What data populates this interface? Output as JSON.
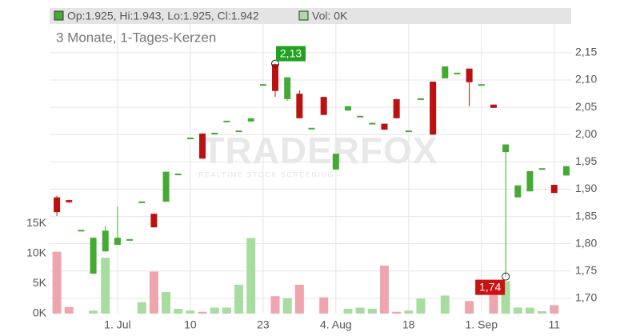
{
  "chart_data": {
    "type": "candlestick",
    "header": "Op:1.925, Hi:1.943, Lo:1.925, Cl:1.942",
    "volume_header": "Vol: 0K",
    "title": "3 Monate, 1-Tages-Kerzen",
    "watermark": "TRADERFOX",
    "watermark_sub": "REALTIME STOCK SCREENING",
    "categories": [
      null,
      null,
      null,
      null,
      null,
      "1. Jul",
      null,
      null,
      null,
      null,
      null,
      "10",
      null,
      null,
      null,
      null,
      null,
      "23",
      null,
      null,
      null,
      null,
      null,
      "4. Aug",
      null,
      null,
      null,
      null,
      null,
      "18",
      null,
      null,
      null,
      null,
      null,
      "1. Sep",
      null,
      null,
      null,
      null,
      null,
      "11",
      null
    ],
    "open": [
      1.885,
      1.88,
      1.824,
      1.745,
      1.786,
      1.798,
      1.807,
      1.876,
      1.855,
      1.877,
      1.927,
      1.993,
      2.002,
      2.002,
      2.024,
      2.006,
      2.024,
      2.091,
      2.129,
      2.065,
      2.075,
      2.011,
      2.069,
      1.936,
      2.044,
      2.033,
      2.02,
      2.02,
      2.065,
      2.006,
      2.065,
      2.097,
      2.103,
      2.112,
      2.121,
      2.091,
      2.055,
      1.968,
      1.885,
      1.896,
      1.937,
      1.908,
      1.925
    ],
    "high": [
      1.888,
      1.881,
      1.824,
      1.811,
      1.833,
      1.868,
      1.807,
      1.876,
      1.855,
      1.932,
      1.927,
      1.993,
      2.002,
      2.002,
      2.024,
      2.006,
      2.03,
      2.091,
      2.13,
      2.105,
      2.081,
      2.011,
      2.069,
      1.965,
      2.052,
      2.033,
      2.02,
      2.02,
      2.065,
      2.006,
      2.065,
      2.097,
      2.125,
      2.112,
      2.121,
      2.091,
      2.055,
      1.982,
      1.907,
      1.933,
      1.937,
      1.908,
      1.943
    ],
    "low": [
      1.851,
      1.875,
      1.824,
      1.745,
      1.786,
      1.798,
      1.807,
      1.876,
      1.83,
      1.877,
      1.927,
      1.993,
      1.956,
      2.002,
      2.024,
      2.006,
      2.024,
      2.091,
      2.069,
      2.062,
      2.03,
      2.011,
      2.036,
      1.936,
      2.044,
      2.033,
      2.02,
      2.009,
      2.03,
      2.006,
      2.065,
      2.0,
      2.103,
      2.112,
      2.052,
      2.091,
      2.049,
      1.74,
      1.885,
      1.896,
      1.937,
      1.893,
      1.925
    ],
    "close": [
      1.858,
      1.876,
      1.824,
      1.811,
      1.824,
      1.811,
      1.807,
      1.876,
      1.83,
      1.932,
      1.927,
      1.993,
      1.956,
      2.002,
      2.024,
      2.006,
      2.03,
      2.091,
      2.08,
      2.105,
      2.03,
      2.011,
      2.036,
      1.965,
      2.052,
      2.033,
      2.02,
      2.009,
      2.03,
      2.006,
      2.065,
      2.0,
      2.125,
      2.112,
      2.096,
      2.091,
      2.049,
      1.982,
      1.907,
      1.933,
      1.937,
      1.893,
      1.942
    ],
    "volume": [
      10.3,
      1.1,
      0,
      0.5,
      9.3,
      0,
      0,
      1.9,
      7,
      3.6,
      0.8,
      0.5,
      0.3,
      1.0,
      1.0,
      4.8,
      12.6,
      0,
      2.9,
      2.6,
      4.8,
      0,
      2.7,
      0,
      0.8,
      1.0,
      0.8,
      8,
      0.3,
      0.5,
      2.5,
      0,
      3,
      0,
      2.1,
      0,
      4,
      5.4,
      1.0,
      1.0,
      0.4,
      1.4,
      0
    ],
    "up_color": "#44aa33",
    "down_color": "#bb1111",
    "volume_up_color": "#a8dca0",
    "volume_down_color": "#eea5ae",
    "annotations": [
      {
        "label": "2,13",
        "value": 2.13,
        "color": "#22a022"
      },
      {
        "label": "1,74",
        "value": 1.74,
        "color": "#cc1111"
      }
    ],
    "ylim": [
      1.672,
      2.232
    ],
    "yticks": [
      {
        "value": 1.7,
        "label": "1,70"
      },
      {
        "value": 1.75,
        "label": "1,75"
      },
      {
        "value": 1.8,
        "label": "1,80"
      },
      {
        "value": 1.85,
        "label": "1,85"
      },
      {
        "value": 1.9,
        "label": "1,90"
      },
      {
        "value": 1.95,
        "label": "1,95"
      },
      {
        "value": 2.0,
        "label": "2,00"
      },
      {
        "value": 2.05,
        "label": "2,05"
      },
      {
        "value": 2.1,
        "label": "2,10"
      },
      {
        "value": 2.15,
        "label": "2,15"
      }
    ],
    "y2lim": [
      0,
      50.9
    ],
    "y2ticks": [
      {
        "value": 0,
        "label": "0K"
      },
      {
        "value": 5,
        "label": "5K"
      },
      {
        "value": 10,
        "label": "10K"
      },
      {
        "value": 15,
        "label": "15K"
      }
    ],
    "grid": true
  }
}
